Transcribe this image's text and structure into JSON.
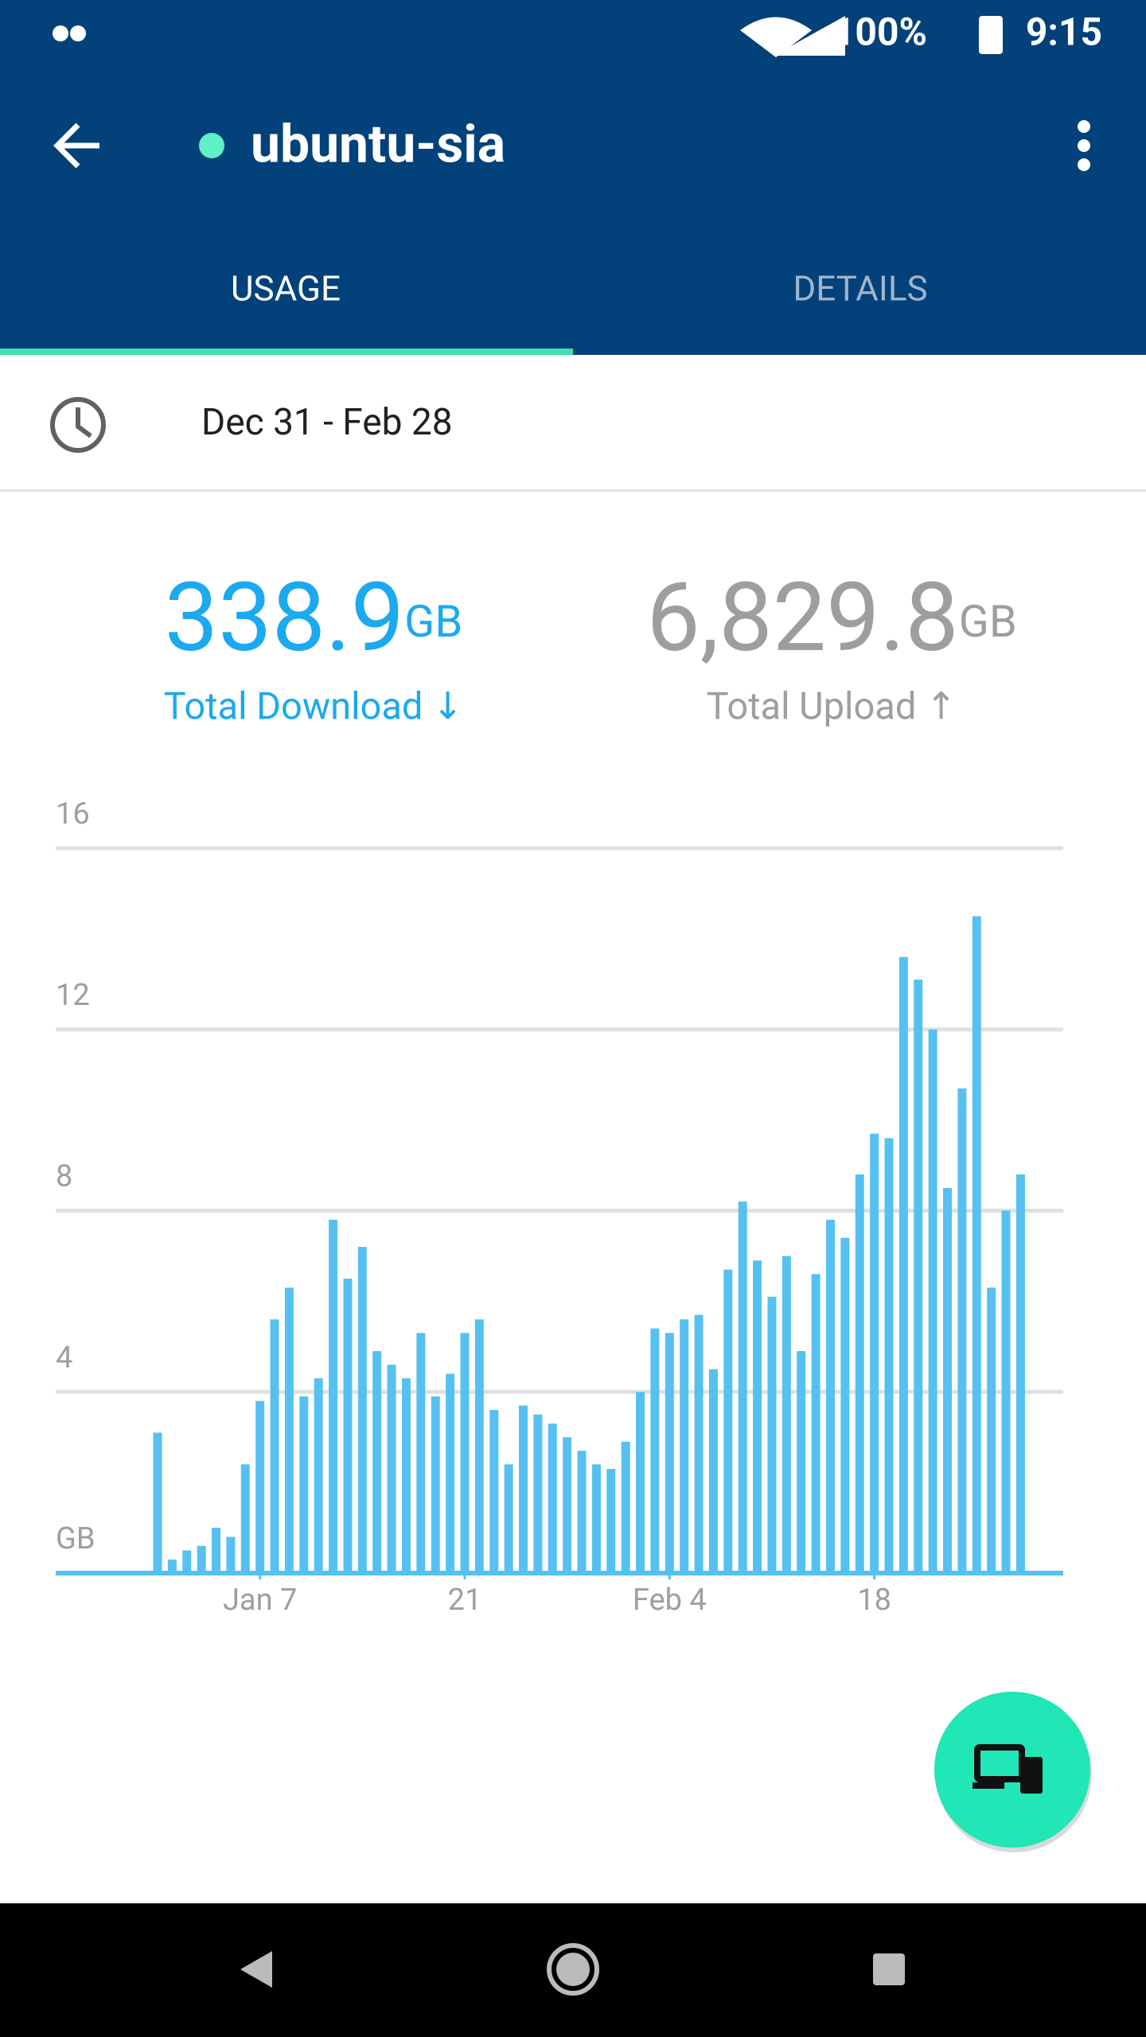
{
  "status_bar": {
    "battery": "100%",
    "time": "9:15"
  },
  "app_bar": {
    "title": "ubuntu-sia"
  },
  "tabs": [
    "USAGE",
    "DETAILS"
  ],
  "date_range": "Dec 31 - Feb 28",
  "download": {
    "value": "338.9",
    "unit": "GB",
    "label": "Total Download ↓"
  },
  "upload": {
    "value": "6,829.8",
    "unit": "GB",
    "label": "Total Upload ↑"
  },
  "chart_data": {
    "type": "bar",
    "color": "#56c1f0",
    "grid": true,
    "categories": [
      null,
      null,
      null,
      null,
      null,
      null,
      null,
      "Jan 7",
      null,
      null,
      null,
      null,
      null,
      null,
      null,
      null,
      null,
      null,
      null,
      null,
      null,
      "21",
      null,
      null,
      null,
      null,
      null,
      null,
      null,
      null,
      null,
      null,
      null,
      null,
      null,
      "Feb 4",
      null,
      null,
      null,
      null,
      null,
      null,
      null,
      null,
      null,
      null,
      null,
      null,
      null,
      "18",
      null,
      null,
      null,
      null,
      null,
      null,
      null,
      null,
      null,
      null
    ],
    "values": [
      3.1,
      0.3,
      0.5,
      0.6,
      1.0,
      0.8,
      2.4,
      3.8,
      5.6,
      6.3,
      3.9,
      4.3,
      7.8,
      6.5,
      7.2,
      4.9,
      4.6,
      4.3,
      5.3,
      3.9,
      4.4,
      5.3,
      5.6,
      3.6,
      2.4,
      3.7,
      3.5,
      3.3,
      3.0,
      2.7,
      2.4,
      2.3,
      2.9,
      4.0,
      5.4,
      5.3,
      5.6,
      5.7,
      4.5,
      6.7,
      8.2,
      6.9,
      6.1,
      7.0,
      4.9,
      6.6,
      7.8,
      7.4,
      8.8,
      9.7,
      9.6,
      13.6,
      13.1,
      12.0,
      8.5,
      10.7,
      14.5,
      6.3,
      8.0,
      8.8
    ],
    "ylim": [
      0,
      16
    ],
    "yticks": [
      {
        "value": 0,
        "label": "GB"
      },
      4,
      8,
      12,
      16
    ]
  }
}
